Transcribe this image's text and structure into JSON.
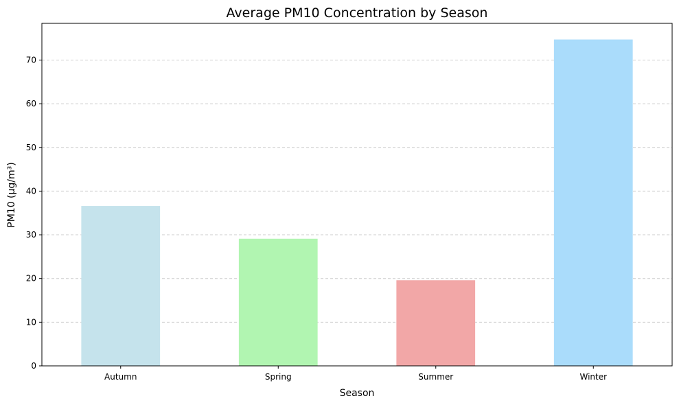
{
  "chart_data": {
    "type": "bar",
    "title": "Average PM10 Concentration by Season",
    "xlabel": "Season",
    "ylabel": "PM10 (µg/m³)",
    "categories": [
      "Autumn",
      "Spring",
      "Summer",
      "Winter"
    ],
    "values": [
      36.6,
      29.1,
      19.6,
      74.7
    ],
    "colors": [
      "#c5e3ec",
      "#b1f5b1",
      "#f2a7a7",
      "#aadcfb"
    ],
    "ylim": [
      0,
      78.4
    ],
    "yticks": [
      "0",
      "10",
      "20",
      "30",
      "40",
      "50",
      "60",
      "70"
    ],
    "grid": "y-dashed",
    "legend": "none"
  }
}
